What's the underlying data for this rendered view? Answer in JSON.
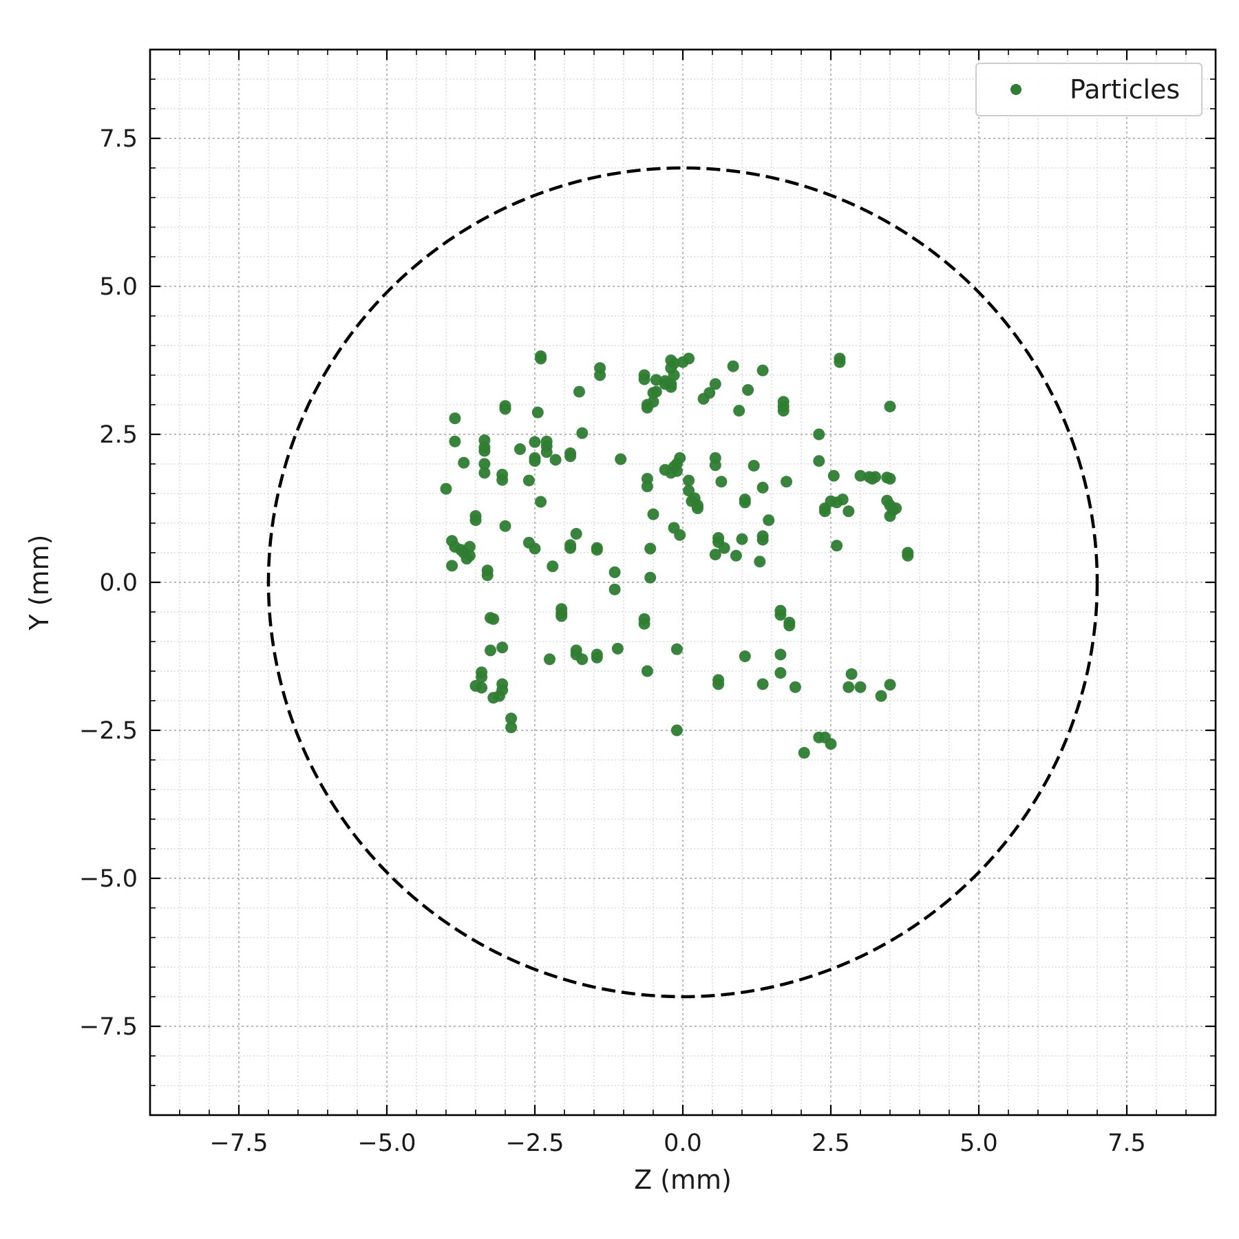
{
  "chart_data": {
    "type": "scatter",
    "title": "",
    "xlabel": "Z (mm)",
    "ylabel": "Y (mm)",
    "xlim": [
      -9,
      9
    ],
    "ylim": [
      -9,
      9
    ],
    "xticks": [
      -7.5,
      -5.0,
      -2.5,
      0.0,
      2.5,
      5.0,
      7.5
    ],
    "yticks": [
      -7.5,
      -5.0,
      -2.5,
      0.0,
      2.5,
      5.0,
      7.5
    ],
    "xtick_labels": [
      "−7.5",
      "−5.0",
      "−2.5",
      "0.0",
      "2.5",
      "5.0",
      "7.5"
    ],
    "ytick_labels": [
      "−7.5",
      "−5.0",
      "−2.5",
      "0.0",
      "2.5",
      "5.0",
      "7.5"
    ],
    "minor_step": 0.5,
    "grid": true,
    "legend_position": "top-right",
    "boundary_circle": {
      "center": [
        0,
        0
      ],
      "radius": 7.0,
      "style": "dashed",
      "color": "#000000"
    },
    "series": [
      {
        "name": "Particles",
        "color": "#2e7d32",
        "points": [
          [
            -4.0,
            1.58
          ],
          [
            -3.85,
            2.77
          ],
          [
            -3.85,
            2.38
          ],
          [
            -3.7,
            2.02
          ],
          [
            -3.9,
            0.7
          ],
          [
            -3.85,
            0.6
          ],
          [
            -3.75,
            0.55
          ],
          [
            -3.6,
            0.6
          ],
          [
            -3.65,
            0.4
          ],
          [
            -3.9,
            0.28
          ],
          [
            -3.7,
            0.5
          ],
          [
            -3.6,
            0.45
          ],
          [
            -3.5,
            1.12
          ],
          [
            -3.5,
            1.05
          ],
          [
            -3.35,
            2.4
          ],
          [
            -3.35,
            2.28
          ],
          [
            -3.35,
            2.22
          ],
          [
            -3.35,
            2.0
          ],
          [
            -3.35,
            1.85
          ],
          [
            -3.3,
            0.2
          ],
          [
            -3.3,
            0.12
          ],
          [
            -3.0,
            2.98
          ],
          [
            -3.0,
            2.93
          ],
          [
            -3.05,
            1.82
          ],
          [
            -3.05,
            1.73
          ],
          [
            -3.0,
            0.95
          ],
          [
            -3.25,
            -0.6
          ],
          [
            -3.2,
            -0.62
          ],
          [
            -3.25,
            -1.15
          ],
          [
            -3.2,
            -1.95
          ],
          [
            -3.4,
            -1.52
          ],
          [
            -3.4,
            -1.6
          ],
          [
            -3.5,
            -1.75
          ],
          [
            -3.4,
            -1.78
          ],
          [
            -3.05,
            -1.1
          ],
          [
            -3.05,
            -1.72
          ],
          [
            -3.05,
            -1.82
          ],
          [
            -3.1,
            -1.92
          ],
          [
            -2.9,
            -2.3
          ],
          [
            -2.9,
            -2.45
          ],
          [
            -2.4,
            3.82
          ],
          [
            -2.4,
            3.78
          ],
          [
            -2.45,
            2.87
          ],
          [
            -2.75,
            2.25
          ],
          [
            -2.5,
            2.37
          ],
          [
            -2.5,
            2.1
          ],
          [
            -2.5,
            2.05
          ],
          [
            -2.3,
            2.38
          ],
          [
            -2.3,
            2.3
          ],
          [
            -2.3,
            2.2
          ],
          [
            -2.15,
            2.07
          ],
          [
            -2.6,
            1.72
          ],
          [
            -2.4,
            1.36
          ],
          [
            -2.6,
            0.67
          ],
          [
            -2.5,
            0.57
          ],
          [
            -2.2,
            0.27
          ],
          [
            -2.25,
            -1.3
          ],
          [
            -2.05,
            -0.45
          ],
          [
            -2.05,
            -0.52
          ],
          [
            -2.05,
            -0.57
          ],
          [
            -1.9,
            2.18
          ],
          [
            -1.9,
            2.13
          ],
          [
            -1.9,
            0.63
          ],
          [
            -1.9,
            0.58
          ],
          [
            -1.8,
            0.82
          ],
          [
            -1.75,
            3.22
          ],
          [
            -1.7,
            2.52
          ],
          [
            -1.8,
            -1.15
          ],
          [
            -1.8,
            -1.22
          ],
          [
            -1.7,
            -1.3
          ],
          [
            -1.4,
            3.62
          ],
          [
            -1.4,
            3.5
          ],
          [
            -1.45,
            0.58
          ],
          [
            -1.45,
            0.55
          ],
          [
            -1.45,
            -1.22
          ],
          [
            -1.45,
            -1.27
          ],
          [
            -1.15,
            0.17
          ],
          [
            -1.15,
            -0.12
          ],
          [
            -1.1,
            -1.12
          ],
          [
            -1.05,
            2.08
          ],
          [
            -0.65,
            3.5
          ],
          [
            -0.65,
            3.43
          ],
          [
            -0.6,
            3.0
          ],
          [
            -0.6,
            2.95
          ],
          [
            -0.5,
            3.05
          ],
          [
            -0.45,
            3.42
          ],
          [
            -0.5,
            3.2
          ],
          [
            -0.45,
            3.22
          ],
          [
            -0.6,
            1.75
          ],
          [
            -0.6,
            1.62
          ],
          [
            -0.5,
            1.15
          ],
          [
            -0.55,
            0.57
          ],
          [
            -0.55,
            0.08
          ],
          [
            -0.65,
            -0.62
          ],
          [
            -0.65,
            -0.7
          ],
          [
            -0.6,
            -1.5
          ],
          [
            -0.3,
            3.35
          ],
          [
            -0.2,
            3.3
          ],
          [
            -0.2,
            3.75
          ],
          [
            -0.15,
            3.7
          ],
          [
            -0.2,
            3.62
          ],
          [
            -0.15,
            3.5
          ],
          [
            -0.3,
            3.4
          ],
          [
            -0.2,
            3.35
          ],
          [
            0.0,
            3.72
          ],
          [
            0.1,
            3.78
          ],
          [
            -0.15,
            1.95
          ],
          [
            -0.1,
            1.88
          ],
          [
            -0.2,
            1.85
          ],
          [
            -0.1,
            2.0
          ],
          [
            -0.05,
            2.1
          ],
          [
            -0.3,
            1.9
          ],
          [
            0.1,
            1.72
          ],
          [
            0.1,
            1.55
          ],
          [
            0.2,
            1.42
          ],
          [
            0.15,
            1.37
          ],
          [
            0.25,
            1.3
          ],
          [
            0.25,
            1.25
          ],
          [
            -0.15,
            0.92
          ],
          [
            -0.05,
            0.8
          ],
          [
            -0.1,
            -1.13
          ],
          [
            -0.1,
            -2.5
          ],
          [
            0.35,
            3.1
          ],
          [
            0.45,
            3.2
          ],
          [
            0.55,
            3.35
          ],
          [
            0.55,
            2.1
          ],
          [
            0.55,
            1.98
          ],
          [
            0.65,
            1.7
          ],
          [
            0.6,
            0.75
          ],
          [
            0.6,
            0.68
          ],
          [
            0.55,
            0.47
          ],
          [
            0.7,
            0.58
          ],
          [
            0.9,
            0.45
          ],
          [
            0.6,
            -1.65
          ],
          [
            0.6,
            -1.72
          ],
          [
            0.85,
            3.65
          ],
          [
            0.95,
            2.9
          ],
          [
            1.1,
            3.25
          ],
          [
            1.2,
            1.97
          ],
          [
            1.05,
            1.4
          ],
          [
            1.05,
            1.35
          ],
          [
            1.0,
            0.73
          ],
          [
            1.35,
            1.6
          ],
          [
            1.45,
            1.05
          ],
          [
            1.35,
            0.78
          ],
          [
            1.35,
            0.72
          ],
          [
            1.3,
            0.35
          ],
          [
            1.05,
            -1.25
          ],
          [
            1.35,
            -1.72
          ],
          [
            1.35,
            3.58
          ],
          [
            1.7,
            3.05
          ],
          [
            1.7,
            2.97
          ],
          [
            1.7,
            2.9
          ],
          [
            1.75,
            1.7
          ],
          [
            1.65,
            -0.48
          ],
          [
            1.65,
            -0.55
          ],
          [
            1.8,
            -0.68
          ],
          [
            1.8,
            -0.73
          ],
          [
            1.65,
            -1.22
          ],
          [
            1.65,
            -1.53
          ],
          [
            1.9,
            -1.77
          ],
          [
            2.3,
            2.5
          ],
          [
            2.3,
            2.05
          ],
          [
            2.4,
            1.25
          ],
          [
            2.4,
            1.2
          ],
          [
            2.5,
            1.37
          ],
          [
            2.6,
            1.35
          ],
          [
            2.7,
            1.4
          ],
          [
            2.55,
            1.8
          ],
          [
            2.6,
            0.62
          ],
          [
            2.05,
            -2.88
          ],
          [
            2.3,
            -2.62
          ],
          [
            2.4,
            -2.62
          ],
          [
            2.5,
            -2.73
          ],
          [
            2.65,
            3.78
          ],
          [
            2.65,
            3.72
          ],
          [
            2.8,
            1.2
          ],
          [
            2.85,
            -1.55
          ],
          [
            2.8,
            -1.77
          ],
          [
            3.0,
            -1.77
          ],
          [
            3.0,
            1.8
          ],
          [
            3.15,
            1.78
          ],
          [
            3.2,
            1.75
          ],
          [
            3.25,
            1.78
          ],
          [
            3.45,
            1.77
          ],
          [
            3.5,
            1.75
          ],
          [
            3.45,
            1.38
          ],
          [
            3.5,
            1.3
          ],
          [
            3.55,
            1.22
          ],
          [
            3.5,
            1.12
          ],
          [
            3.6,
            1.25
          ],
          [
            3.5,
            2.97
          ],
          [
            3.35,
            -1.92
          ],
          [
            3.5,
            -1.73
          ],
          [
            3.8,
            0.5
          ],
          [
            3.8,
            0.45
          ]
        ]
      }
    ]
  },
  "legend": {
    "label": "Particles"
  }
}
